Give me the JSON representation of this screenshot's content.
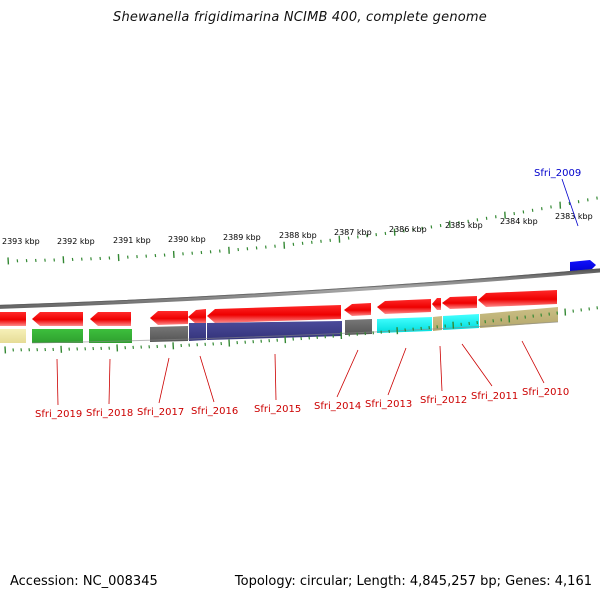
{
  "title": "Shewanella frigidimarina NCIMB 400, complete genome",
  "footer": {
    "accession": "Accession: NC_008345",
    "summary": "Topology: circular; Length: 4,845,257 bp; Genes: 4,161"
  },
  "colors": {
    "forward_gene": "#0000ee",
    "reverse_gene": "#ee0000",
    "backbone": "#808080",
    "ticks": "#338833",
    "label_reverse": "#cc0000",
    "label_forward": "#0000cc"
  },
  "scale_labels": [
    "2393 kbp",
    "2392 kbp",
    "2391 kbp",
    "2390 kbp",
    "2389 kbp",
    "2388 kbp",
    "2387 kbp",
    "2386 kbp",
    "2385 kbp",
    "2384 kbp",
    "2383 kbp"
  ],
  "genes": [
    {
      "name": "Sfri_2009",
      "strand": "+"
    },
    {
      "name": "Sfri_2010",
      "strand": "-"
    },
    {
      "name": "Sfri_2011",
      "strand": "-"
    },
    {
      "name": "Sfri_2012",
      "strand": "-"
    },
    {
      "name": "Sfri_2013",
      "strand": "-"
    },
    {
      "name": "Sfri_2014",
      "strand": "-"
    },
    {
      "name": "Sfri_2015",
      "strand": "-"
    },
    {
      "name": "Sfri_2016",
      "strand": "-"
    },
    {
      "name": "Sfri_2017",
      "strand": "-"
    },
    {
      "name": "Sfri_2018",
      "strand": "-"
    },
    {
      "name": "Sfri_2019",
      "strand": "-"
    }
  ]
}
